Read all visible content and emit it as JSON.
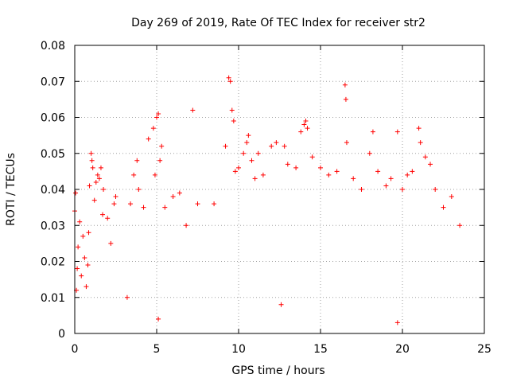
{
  "chart_data": {
    "type": "scatter",
    "title": "Day 269 of 2019, Rate Of TEC Index for receiver str2",
    "xlabel": "GPS time / hours",
    "ylabel": "ROTI / TECUs",
    "xlim": [
      0,
      25
    ],
    "ylim": [
      0,
      0.08
    ],
    "xticks": [
      0,
      5,
      10,
      15,
      20,
      25
    ],
    "yticks": [
      0,
      0.01,
      0.02,
      0.03,
      0.04,
      0.05,
      0.06,
      0.07,
      0.08
    ],
    "xtick_labels": [
      "0",
      "5",
      "10",
      "15",
      "20",
      "25"
    ],
    "ytick_labels": [
      "0",
      "0.01",
      "0.02",
      "0.03",
      "0.04",
      "0.05",
      "0.06",
      "0.07",
      "0.08"
    ],
    "grid": true,
    "marker": "+",
    "color": "#ff0000",
    "series": [
      {
        "name": "ROTI",
        "points": [
          [
            0.0,
            0.034
          ],
          [
            0.05,
            0.039
          ],
          [
            0.1,
            0.012
          ],
          [
            0.15,
            0.018
          ],
          [
            0.2,
            0.024
          ],
          [
            0.3,
            0.031
          ],
          [
            0.4,
            0.016
          ],
          [
            0.5,
            0.027
          ],
          [
            0.6,
            0.021
          ],
          [
            0.7,
            0.013
          ],
          [
            0.8,
            0.019
          ],
          [
            0.85,
            0.028
          ],
          [
            0.9,
            0.041
          ],
          [
            1.0,
            0.05
          ],
          [
            1.05,
            0.048
          ],
          [
            1.1,
            0.046
          ],
          [
            1.2,
            0.037
          ],
          [
            1.3,
            0.042
          ],
          [
            1.4,
            0.044
          ],
          [
            1.5,
            0.043
          ],
          [
            1.6,
            0.046
          ],
          [
            1.7,
            0.033
          ],
          [
            1.75,
            0.04
          ],
          [
            2.0,
            0.032
          ],
          [
            2.2,
            0.025
          ],
          [
            2.4,
            0.036
          ],
          [
            2.5,
            0.038
          ],
          [
            3.2,
            0.01
          ],
          [
            3.4,
            0.036
          ],
          [
            3.6,
            0.044
          ],
          [
            3.8,
            0.048
          ],
          [
            3.9,
            0.04
          ],
          [
            4.2,
            0.035
          ],
          [
            4.5,
            0.054
          ],
          [
            4.8,
            0.057
          ],
          [
            4.9,
            0.044
          ],
          [
            5.0,
            0.06
          ],
          [
            5.1,
            0.061
          ],
          [
            5.2,
            0.048
          ],
          [
            5.3,
            0.052
          ],
          [
            5.5,
            0.035
          ],
          [
            6.0,
            0.038
          ],
          [
            6.4,
            0.039
          ],
          [
            6.8,
            0.03
          ],
          [
            7.2,
            0.062
          ],
          [
            7.5,
            0.036
          ],
          [
            8.5,
            0.036
          ],
          [
            9.2,
            0.052
          ],
          [
            9.4,
            0.071
          ],
          [
            9.5,
            0.07
          ],
          [
            9.6,
            0.062
          ],
          [
            9.7,
            0.059
          ],
          [
            9.8,
            0.045
          ],
          [
            10.0,
            0.046
          ],
          [
            10.3,
            0.05
          ],
          [
            10.5,
            0.053
          ],
          [
            10.6,
            0.055
          ],
          [
            10.8,
            0.048
          ],
          [
            11.0,
            0.043
          ],
          [
            11.2,
            0.05
          ],
          [
            11.5,
            0.044
          ],
          [
            12.0,
            0.052
          ],
          [
            12.3,
            0.053
          ],
          [
            12.8,
            0.052
          ],
          [
            13.0,
            0.047
          ],
          [
            13.5,
            0.046
          ],
          [
            13.8,
            0.056
          ],
          [
            14.0,
            0.058
          ],
          [
            14.1,
            0.059
          ],
          [
            14.2,
            0.057
          ],
          [
            14.5,
            0.049
          ],
          [
            15.0,
            0.046
          ],
          [
            15.5,
            0.044
          ],
          [
            16.0,
            0.045
          ],
          [
            16.5,
            0.069
          ],
          [
            16.55,
            0.065
          ],
          [
            16.6,
            0.053
          ],
          [
            17.0,
            0.043
          ],
          [
            17.5,
            0.04
          ],
          [
            18.0,
            0.05
          ],
          [
            18.2,
            0.056
          ],
          [
            18.5,
            0.045
          ],
          [
            19.0,
            0.041
          ],
          [
            19.3,
            0.043
          ],
          [
            19.7,
            0.056
          ],
          [
            20.0,
            0.04
          ],
          [
            20.3,
            0.044
          ],
          [
            20.6,
            0.045
          ],
          [
            21.0,
            0.057
          ],
          [
            21.1,
            0.053
          ],
          [
            21.4,
            0.049
          ],
          [
            21.7,
            0.047
          ],
          [
            22.0,
            0.04
          ],
          [
            22.5,
            0.035
          ],
          [
            23.0,
            0.038
          ],
          [
            23.5,
            0.03
          ],
          [
            19.7,
            0.003
          ],
          [
            5.1,
            0.004
          ],
          [
            12.6,
            0.008
          ]
        ]
      }
    ]
  }
}
